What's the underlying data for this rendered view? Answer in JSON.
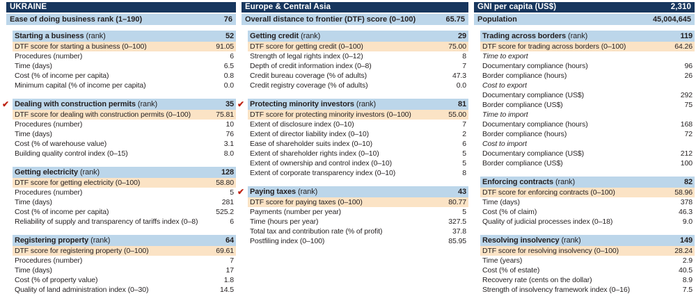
{
  "icons": {
    "reform_check": "✔"
  },
  "colors": {
    "navy_bar": "#17365d",
    "light_blue_row": "#bcd6ea",
    "dtf_orange_row": "#fbe3c5",
    "reform_check_red": "#be2314",
    "text": "#231f20"
  },
  "header": {
    "columns": [
      {
        "title": "UKRAINE",
        "sub_label": "Ease of doing business rank (1–190)",
        "sub_value": "76"
      },
      {
        "title": "Europe & Central Asia",
        "sub_label": "Overall distance to frontier (DTF) score (0–100)",
        "sub_value": "65.75"
      },
      {
        "title": "GNI per capita (US$)",
        "title_value": "2,310",
        "sub_label": "Population",
        "sub_value": "45,004,645"
      }
    ]
  },
  "columns": [
    {
      "sections": [
        {
          "title": "Starting a business",
          "title_suffix": "(rank)",
          "rank": "52",
          "checked": false,
          "rows": [
            {
              "type": "dtf",
              "label": "DTF score for starting a business (0–100)",
              "value": "91.05"
            },
            {
              "label": "Procedures (number)",
              "value": "6"
            },
            {
              "label": "Time (days)",
              "value": "6.5"
            },
            {
              "label": "Cost (% of income per capita)",
              "value": "0.8"
            },
            {
              "label": "Minimum capital (% of income per capita)",
              "value": "0.0"
            }
          ]
        },
        {
          "title": "Dealing with construction permits",
          "title_suffix": "(rank)",
          "rank": "35",
          "checked": true,
          "rows": [
            {
              "type": "dtf",
              "label": "DTF score for dealing with construction permits (0–100)",
              "value": "75.81"
            },
            {
              "label": "Procedures (number)",
              "value": "10"
            },
            {
              "label": "Time (days)",
              "value": "76"
            },
            {
              "label": "Cost (% of warehouse value)",
              "value": "3.1"
            },
            {
              "label": "Building quality control index (0–15)",
              "value": "8.0"
            }
          ]
        },
        {
          "title": "Getting electricity",
          "title_suffix": "(rank)",
          "rank": "128",
          "checked": false,
          "rows": [
            {
              "type": "dtf",
              "label": "DTF score for getting electricity (0–100)",
              "value": "58.80"
            },
            {
              "label": "Procedures (number)",
              "value": "5"
            },
            {
              "label": "Time (days)",
              "value": "281"
            },
            {
              "label": "Cost (% of income per capita)",
              "value": "525.2"
            },
            {
              "label": "Reliability of supply and transparency of tariffs index (0–8)",
              "value": "6"
            }
          ]
        },
        {
          "title": "Registering property",
          "title_suffix": "(rank)",
          "rank": "64",
          "checked": false,
          "rows": [
            {
              "type": "dtf",
              "label": "DTF score for registering property (0–100)",
              "value": "69.61"
            },
            {
              "label": "Procedures (number)",
              "value": "7"
            },
            {
              "label": "Time (days)",
              "value": "17"
            },
            {
              "label": "Cost (% of property value)",
              "value": "1.8"
            },
            {
              "label": "Quality of land administration index (0–30)",
              "value": "14.5"
            }
          ]
        }
      ]
    },
    {
      "sections": [
        {
          "title": "Getting credit",
          "title_suffix": "(rank)",
          "rank": "29",
          "checked": false,
          "rows": [
            {
              "type": "dtf",
              "label": "DTF score for getting credit (0–100)",
              "value": "75.00"
            },
            {
              "label": "Strength of legal rights index (0–12)",
              "value": "8"
            },
            {
              "label": "Depth of credit information index (0–8)",
              "value": "7"
            },
            {
              "label": "Credit bureau coverage (% of adults)",
              "value": "47.3"
            },
            {
              "label": "Credit registry coverage (% of adults)",
              "value": "0.0"
            }
          ]
        },
        {
          "title": "Protecting minority investors",
          "title_suffix": "(rank)",
          "rank": "81",
          "checked": true,
          "rows": [
            {
              "type": "dtf",
              "label": "DTF score for protecting minority investors (0–100)",
              "value": "55.00"
            },
            {
              "label": "Extent of disclosure index (0–10)",
              "value": "7"
            },
            {
              "label": "Extent of director liability index (0–10)",
              "value": "2"
            },
            {
              "label": "Ease of shareholder suits index (0–10)",
              "value": "6"
            },
            {
              "label": "Extent of shareholder rights index (0–10)",
              "value": "5"
            },
            {
              "label": "Extent of ownership and control index (0–10)",
              "value": "5"
            },
            {
              "label": "Extent of corporate transparency index (0–10)",
              "value": "8"
            }
          ]
        },
        {
          "title": "Paying taxes",
          "title_suffix": "(rank)",
          "rank": "43",
          "checked": true,
          "rows": [
            {
              "type": "dtf",
              "label": "DTF score for paying taxes (0–100)",
              "value": "80.77"
            },
            {
              "label": "Payments (number per year)",
              "value": "5"
            },
            {
              "label": "Time (hours per year)",
              "value": "327.5"
            },
            {
              "label": "Total tax and contribution rate (% of profit)",
              "value": "37.8"
            },
            {
              "label": "Postfiling index (0–100)",
              "value": "85.95"
            }
          ]
        }
      ]
    },
    {
      "sections": [
        {
          "title": "Trading across borders",
          "title_suffix": "(rank)",
          "rank": "119",
          "checked": false,
          "rows": [
            {
              "type": "dtf",
              "label": "DTF score for trading across borders (0–100)",
              "value": "64.26"
            },
            {
              "type": "subhead",
              "label": "Time to export"
            },
            {
              "label": "Documentary compliance (hours)",
              "value": "96"
            },
            {
              "label": "Border compliance (hours)",
              "value": "26"
            },
            {
              "type": "subhead",
              "label": "Cost to export"
            },
            {
              "label": "Documentary compliance (US$)",
              "value": "292"
            },
            {
              "label": "Border compliance (US$)",
              "value": "75"
            },
            {
              "type": "subhead",
              "label": "Time to import"
            },
            {
              "label": "Documentary compliance (hours)",
              "value": "168"
            },
            {
              "label": "Border compliance (hours)",
              "value": "72"
            },
            {
              "type": "subhead",
              "label": "Cost to import"
            },
            {
              "label": "Documentary compliance (US$)",
              "value": "212"
            },
            {
              "label": "Border compliance (US$)",
              "value": "100"
            }
          ]
        },
        {
          "title": "Enforcing contracts",
          "title_suffix": "(rank)",
          "rank": "82",
          "checked": false,
          "rows": [
            {
              "type": "dtf",
              "label": "DTF score for enforcing contracts (0–100)",
              "value": "58.96"
            },
            {
              "label": "Time (days)",
              "value": "378"
            },
            {
              "label": "Cost (% of claim)",
              "value": "46.3"
            },
            {
              "label": "Quality of judicial processes index (0–18)",
              "value": "9.0"
            }
          ]
        },
        {
          "title": "Resolving insolvency",
          "title_suffix": "(rank)",
          "rank": "149",
          "checked": false,
          "rows": [
            {
              "type": "dtf",
              "label": "DTF score for resolving insolvency (0–100)",
              "value": "28.24"
            },
            {
              "label": "Time (years)",
              "value": "2.9"
            },
            {
              "label": "Cost (% of estate)",
              "value": "40.5"
            },
            {
              "label": "Recovery rate (cents on the dollar)",
              "value": "8.9"
            },
            {
              "label": "Strength of insolvency framework index (0–16)",
              "value": "7.5"
            }
          ]
        }
      ]
    }
  ]
}
